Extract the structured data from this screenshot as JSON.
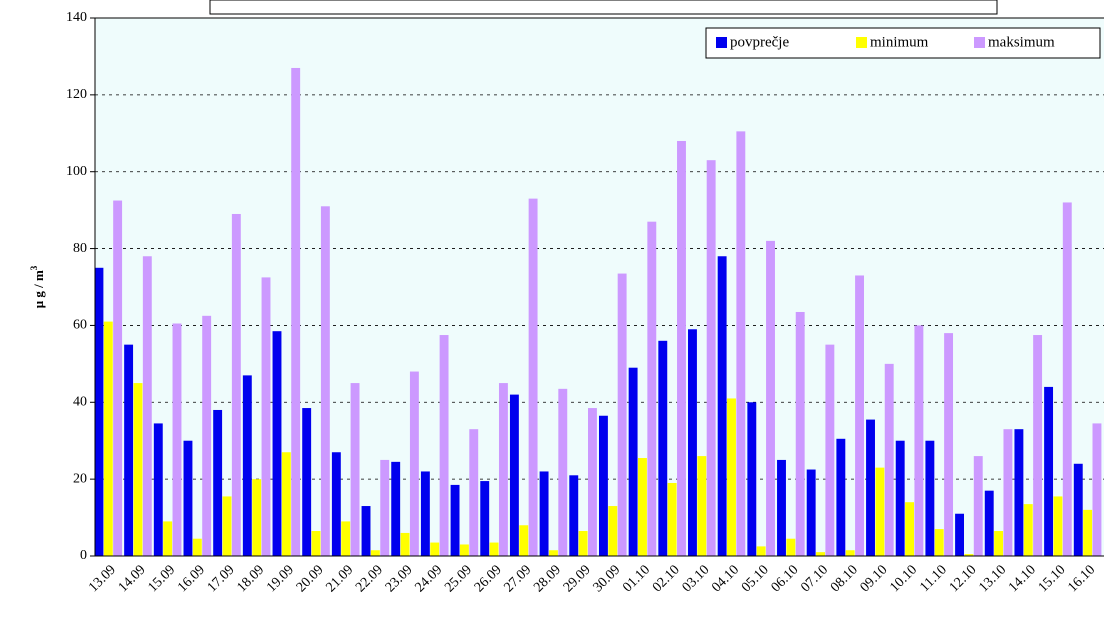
{
  "chart_data": {
    "type": "bar",
    "ylabel": "μ g / m",
    "ylabel_superscript": "3",
    "categories": [
      "13.09",
      "14.09",
      "15.09",
      "16.09",
      "17.09",
      "18.09",
      "19.09",
      "20.09",
      "21.09",
      "22.09",
      "23.09",
      "24.09",
      "25.09",
      "26.09",
      "27.09",
      "28.09",
      "29.09",
      "30.09",
      "01.10",
      "02.10",
      "03.10",
      "04.10",
      "05.10",
      "06.10",
      "07.10",
      "08.10",
      "09.10",
      "10.10",
      "11.10",
      "12.10",
      "13.10",
      "14.10",
      "15.10",
      "16.10"
    ],
    "series": [
      {
        "name": "povprečje",
        "color": "#0000ee",
        "values": [
          75,
          55,
          34.5,
          30,
          38,
          47,
          58.5,
          38.5,
          27,
          13,
          24.5,
          22,
          18.5,
          19.5,
          42,
          22,
          21,
          36.5,
          49,
          56,
          59,
          78,
          40,
          25,
          22.5,
          30.5,
          35.5,
          30,
          30,
          11,
          17,
          33,
          44,
          24
        ]
      },
      {
        "name": "minimum",
        "color": "#ffff00",
        "values": [
          61,
          45,
          9,
          4.5,
          15.5,
          20,
          27,
          6.5,
          9,
          1.5,
          6,
          3.5,
          3,
          3.5,
          8,
          1.5,
          6.5,
          13,
          25.5,
          19,
          26,
          41,
          2.5,
          4.5,
          1,
          1.5,
          23,
          14,
          7,
          0.5,
          6.5,
          13.5,
          15.5,
          12
        ]
      },
      {
        "name": "maksimum",
        "color": "#cc99ff",
        "values": [
          92.5,
          78,
          60.5,
          62.5,
          89,
          72.5,
          127,
          91,
          45,
          25,
          48,
          57.5,
          33,
          45,
          93,
          43.5,
          38.5,
          73.5,
          87,
          108,
          103,
          110.5,
          82,
          63.5,
          55,
          73,
          50,
          60,
          58,
          26,
          33,
          57.5,
          92,
          34.5
        ]
      }
    ],
    "ylim": [
      0,
      140
    ],
    "yticks": [
      0,
      20,
      40,
      60,
      80,
      100,
      120,
      140
    ],
    "grid": true,
    "legend": "top-right"
  }
}
